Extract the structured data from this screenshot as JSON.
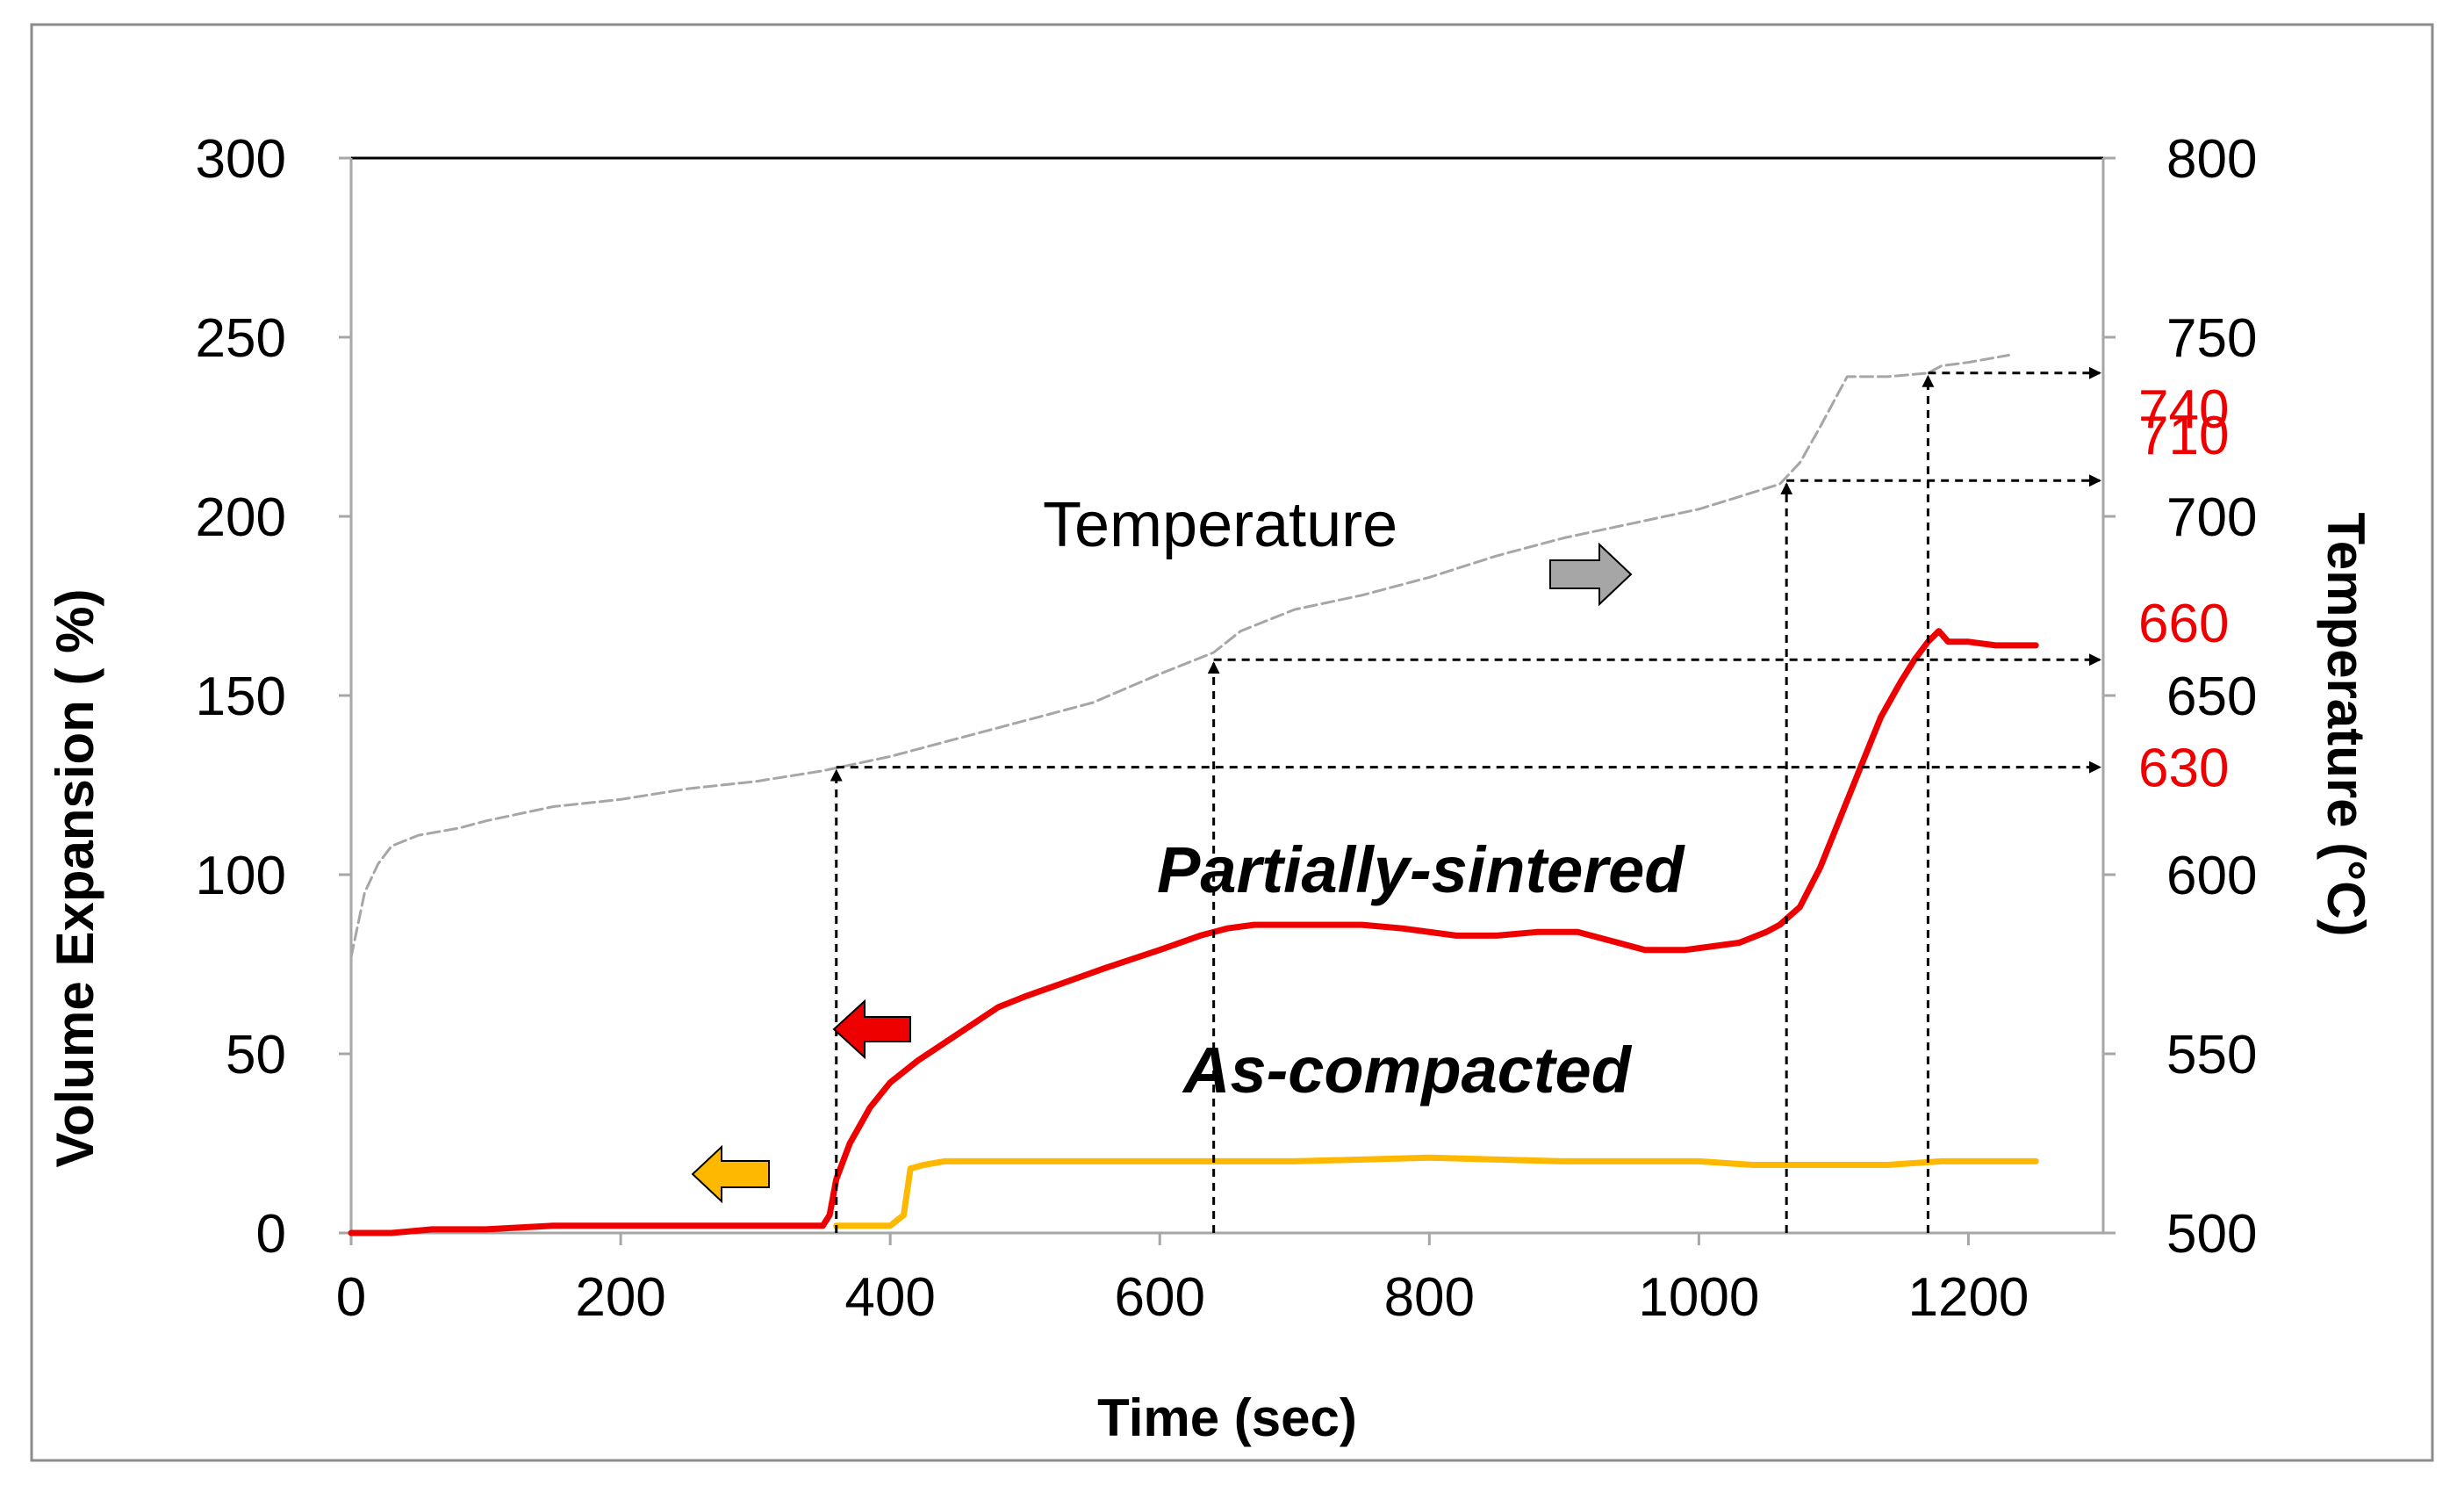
{
  "chart_data": {
    "type": "line",
    "title": "",
    "xlabel": "Time (sec)",
    "ylabel": "Volume Expansion ( %)",
    "y2label": "Temperature (°C)",
    "xlim": [
      0,
      1300
    ],
    "ylim": [
      0,
      300
    ],
    "y2lim": [
      500,
      800
    ],
    "xticks": [
      0,
      200,
      400,
      600,
      800,
      1000,
      1200
    ],
    "yticks": [
      0,
      50,
      100,
      150,
      200,
      250,
      300
    ],
    "y2ticks": [
      500,
      550,
      600,
      650,
      700,
      750,
      800
    ],
    "grid": false,
    "colors": {
      "partially_sintered": "#ee0000",
      "as_compacted": "#ffb800",
      "temperature": "#a6a6a6",
      "marker_text": "#ee0000",
      "guide": "#000000"
    },
    "series": [
      {
        "name": "Partially-sintered",
        "axis": "left",
        "label": "Partially-sintered",
        "x": [
          0,
          30,
          60,
          100,
          150,
          200,
          250,
          300,
          330,
          350,
          355,
          360,
          370,
          385,
          400,
          420,
          440,
          460,
          480,
          500,
          530,
          560,
          600,
          630,
          650,
          670,
          700,
          750,
          780,
          820,
          850,
          880,
          910,
          940,
          960,
          990,
          1010,
          1030,
          1050,
          1060,
          1075,
          1090,
          1105,
          1120,
          1135,
          1150,
          1160,
          1170,
          1178,
          1185,
          1200,
          1220,
          1250
        ],
        "y": [
          0,
          0,
          1,
          1,
          2,
          2,
          2,
          2,
          2,
          2,
          5,
          15,
          25,
          35,
          42,
          48,
          53,
          58,
          63,
          66,
          70,
          74,
          79,
          83,
          85,
          86,
          86,
          86,
          85,
          83,
          83,
          84,
          84,
          81,
          79,
          79,
          80,
          81,
          84,
          86,
          91,
          102,
          116,
          130,
          144,
          154,
          160,
          165,
          168,
          165,
          165,
          164,
          164
        ]
      },
      {
        "name": "As-compacted",
        "axis": "left",
        "label": "As-compacted",
        "x": [
          360,
          380,
          400,
          410,
          415,
          425,
          440,
          500,
          600,
          700,
          800,
          900,
          1000,
          1040,
          1100,
          1140,
          1180,
          1250
        ],
        "y": [
          2,
          2,
          2,
          5,
          18,
          19,
          20,
          20,
          20,
          20,
          21,
          20,
          20,
          19,
          19,
          19,
          20,
          20
        ]
      },
      {
        "name": "Temperature",
        "axis": "right",
        "label": "Temperature",
        "x": [
          0,
          10,
          20,
          30,
          50,
          80,
          100,
          150,
          200,
          250,
          300,
          350,
          400,
          450,
          500,
          550,
          600,
          640,
          660,
          700,
          750,
          800,
          850,
          900,
          950,
          1000,
          1060,
          1075,
          1090,
          1100,
          1110,
          1140,
          1170,
          1180,
          1200,
          1230
        ],
        "y": [
          577,
          595,
          603,
          608,
          611,
          613,
          615,
          619,
          621,
          624,
          626,
          629,
          633,
          638,
          643,
          648,
          656,
          662,
          668,
          674,
          678,
          683,
          689,
          694,
          698,
          702,
          709,
          715,
          725,
          732,
          739,
          739,
          740,
          742,
          743,
          745
        ]
      }
    ],
    "annotations": {
      "guides": [
        {
          "x": 360,
          "temp": 630,
          "label": "630"
        },
        {
          "x": 640,
          "temp": 660,
          "label": "660"
        },
        {
          "x": 1065,
          "temp": 710,
          "label": "710"
        },
        {
          "x": 1170,
          "temp": 740,
          "label": "740"
        }
      ],
      "arrows": [
        {
          "name": "temperature-axis-arrow",
          "direction": "right",
          "color": "#a6a6a6"
        },
        {
          "name": "partially-sintered-axis-arrow",
          "direction": "left",
          "color": "#ee0000"
        },
        {
          "name": "as-compacted-axis-arrow",
          "direction": "left",
          "color": "#ffb800"
        }
      ]
    }
  }
}
